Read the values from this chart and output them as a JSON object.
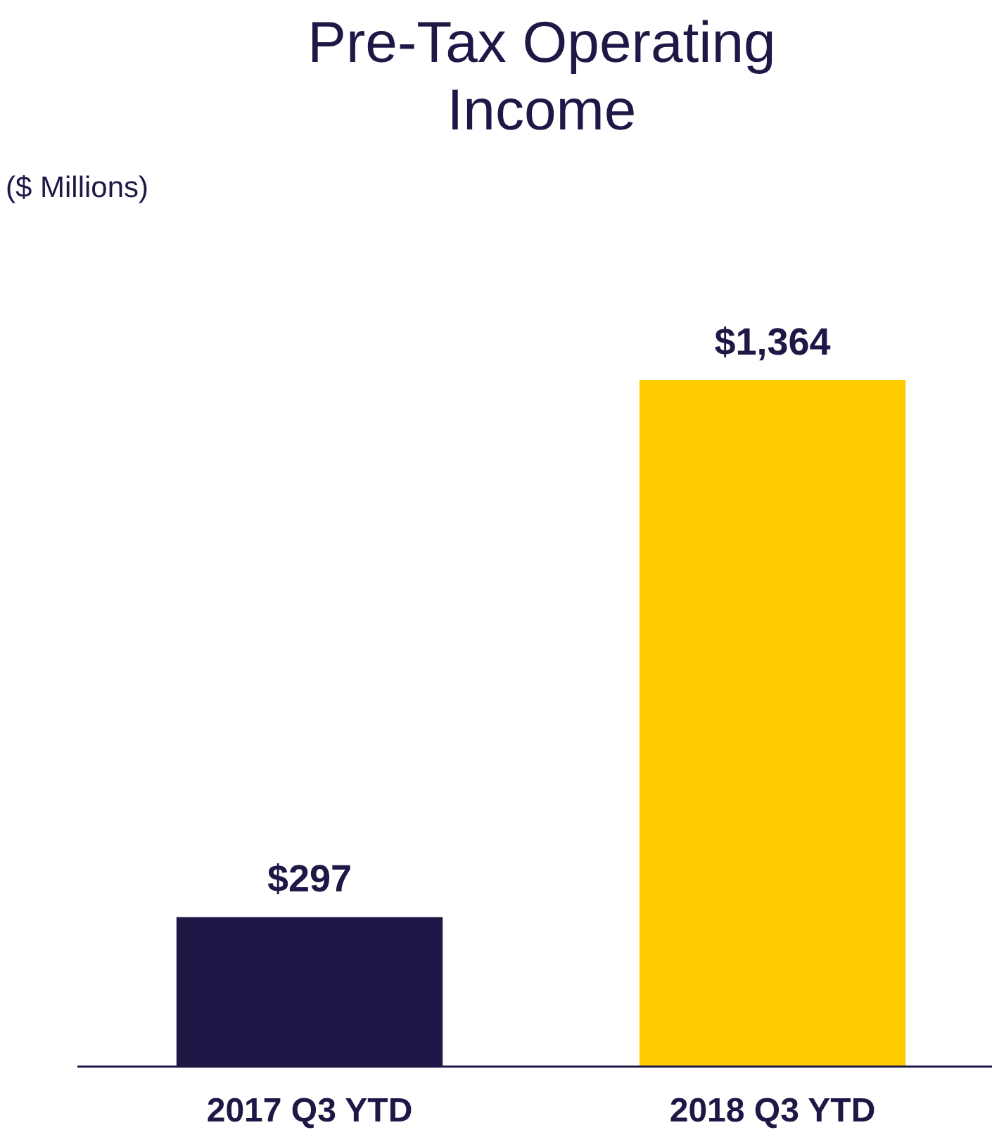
{
  "chart_data": {
    "type": "bar",
    "title": "Pre-Tax Operating Income",
    "subtitle": "($ Millions)",
    "categories": [
      "2017 Q3 YTD",
      "2018 Q3 YTD"
    ],
    "values": [
      297,
      1364
    ],
    "colors": [
      "#1e1847",
      "#ffcc00"
    ],
    "value_labels": [
      "$297",
      "$1,364"
    ]
  }
}
